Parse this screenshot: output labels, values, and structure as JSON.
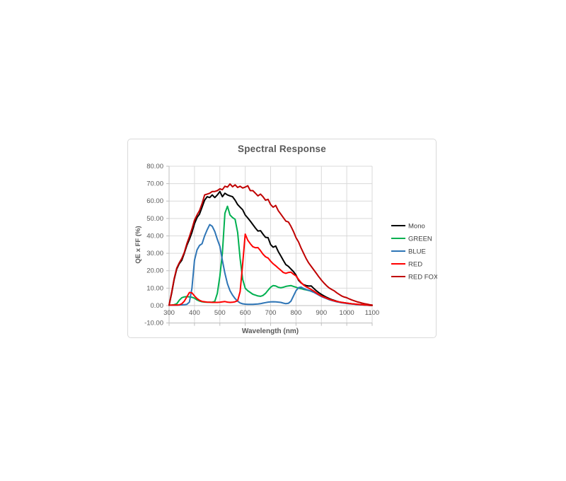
{
  "chart": {
    "frame_border_color": "#d9d9d9",
    "background_color": "#ffffff",
    "gridline_color": "#d9d9d9",
    "axis_line_color": "#bfbfbf",
    "title_color": "#595959",
    "tick_label_color": "#595959",
    "legend_label_color": "#404040"
  },
  "chart_data": {
    "type": "line",
    "title": "Spectral Response",
    "xlabel": "Wavelength (nm)",
    "ylabel": "QE x FF (%)",
    "xlim": [
      300,
      1100
    ],
    "ylim": [
      -10,
      80
    ],
    "grid": true,
    "legend_position": "right",
    "x_ticks": [
      300,
      400,
      500,
      600,
      700,
      800,
      900,
      1000,
      1100
    ],
    "x_tick_labels": [
      "300",
      "400",
      "500",
      "600",
      "700",
      "800",
      "900",
      "1000",
      "1100"
    ],
    "y_ticks": [
      80,
      70,
      60,
      50,
      40,
      30,
      20,
      10,
      0,
      -10
    ],
    "y_tick_labels": [
      "80.00",
      "70.00",
      "60.00",
      "50.00",
      "40.00",
      "30.00",
      "20.00",
      "10.00",
      "0.00",
      "-10.00"
    ],
    "x": [
      300,
      310,
      320,
      330,
      340,
      350,
      360,
      370,
      380,
      390,
      400,
      410,
      420,
      430,
      440,
      450,
      460,
      470,
      480,
      490,
      500,
      510,
      520,
      530,
      540,
      550,
      560,
      570,
      580,
      590,
      600,
      610,
      620,
      630,
      640,
      650,
      660,
      670,
      680,
      690,
      700,
      710,
      720,
      730,
      740,
      750,
      760,
      770,
      780,
      790,
      800,
      810,
      820,
      830,
      840,
      850,
      860,
      870,
      880,
      890,
      900,
      910,
      920,
      930,
      940,
      950,
      960,
      970,
      980,
      990,
      1000,
      1010,
      1020,
      1030,
      1040,
      1050,
      1060,
      1070,
      1080,
      1090,
      1100
    ],
    "series": [
      {
        "name": "Mono",
        "color": "#000000",
        "values": [
          0.2,
          7,
          15,
          21,
          24,
          26,
          30,
          34.5,
          38,
          42,
          47,
          50.5,
          52.5,
          56.5,
          60.5,
          62.5,
          62,
          63.5,
          62,
          63.5,
          65.5,
          62.5,
          64.5,
          63.5,
          63,
          62.5,
          60.5,
          58,
          56.5,
          55,
          52,
          50.3,
          48.5,
          46.5,
          44.5,
          42.8,
          43,
          41,
          39.2,
          39,
          35,
          33.5,
          34.2,
          31,
          28.5,
          26,
          23.5,
          22.5,
          21,
          19.5,
          17.5,
          14.5,
          13,
          12,
          11.5,
          11.2,
          11.3,
          9.8,
          8.5,
          7.4,
          6.4,
          5.6,
          4.8,
          4.1,
          3.5,
          3,
          2.5,
          2.1,
          1.8,
          1.6,
          1.4,
          1.2,
          1,
          0.85,
          0.7,
          0.6,
          0.45,
          0.35,
          0.25,
          0.15,
          0.1
        ]
      },
      {
        "name": "GREEN",
        "color": "#00b050",
        "values": [
          0.2,
          0.3,
          0.5,
          1,
          3,
          4.5,
          5,
          5.2,
          5,
          4.8,
          4.2,
          3.2,
          2.6,
          2.2,
          2,
          1.9,
          1.9,
          2,
          2.4,
          7,
          17,
          30,
          53,
          57,
          52,
          50.5,
          49.5,
          42,
          27,
          15,
          10,
          8.5,
          7.5,
          6.5,
          6,
          5.5,
          5.3,
          5.8,
          7,
          8.8,
          10.5,
          11.5,
          11.3,
          10.5,
          10.2,
          10.5,
          11,
          11.3,
          11.5,
          11,
          10.5,
          10,
          9.7,
          9.3,
          9,
          8.7,
          8.3,
          7.8,
          7,
          6.2,
          5.4,
          4.8,
          4.2,
          3.6,
          3.1,
          2.7,
          2.3,
          2,
          1.7,
          1.5,
          1.3,
          1.1,
          0.95,
          0.8,
          0.7,
          0.55,
          0.45,
          0.3,
          0.2,
          0.15,
          0.1
        ]
      },
      {
        "name": "BLUE",
        "color": "#2e75b6",
        "values": [
          0.2,
          0.2,
          0.2,
          0.2,
          0.3,
          0.4,
          0.5,
          0.7,
          2,
          10,
          26,
          32,
          34.5,
          35.5,
          40,
          43.5,
          46.5,
          45.5,
          42.5,
          38,
          34,
          26,
          18.5,
          12.5,
          8.5,
          6,
          4,
          2.5,
          1.5,
          1,
          0.8,
          0.7,
          0.7,
          0.7,
          0.8,
          0.9,
          1.1,
          1.4,
          1.7,
          2,
          2.1,
          2.2,
          2.1,
          2,
          1.8,
          1.4,
          1.1,
          1.3,
          2.5,
          5.5,
          8.5,
          10.3,
          10.6,
          9.8,
          9.2,
          8.8,
          8.2,
          7.6,
          6.8,
          6,
          5.2,
          4.6,
          4,
          3.4,
          3,
          2.6,
          2.2,
          1.9,
          1.6,
          1.4,
          1.2,
          1,
          0.9,
          0.75,
          0.6,
          0.5,
          0.4,
          0.3,
          0.2,
          0.12,
          0.1
        ]
      },
      {
        "name": "RED",
        "color": "#ff0000",
        "values": [
          0.2,
          0.3,
          0.3,
          0.3,
          0.4,
          1,
          2.5,
          5,
          7.5,
          7.3,
          5.5,
          4,
          3,
          2.4,
          2.2,
          2,
          1.9,
          1.8,
          1.8,
          1.8,
          1.9,
          2.1,
          2.3,
          2,
          1.8,
          1.9,
          2.2,
          2.8,
          8,
          24,
          41,
          37.5,
          35.5,
          33.8,
          33.2,
          33.3,
          31.5,
          29.5,
          28,
          27.3,
          25.5,
          24,
          22.8,
          21.5,
          20.3,
          19,
          18.5,
          19,
          19.2,
          18,
          17,
          15,
          13.2,
          11.8,
          10.8,
          10,
          9.2,
          8.3,
          7.3,
          6.3,
          5.5,
          4.9,
          4.3,
          3.7,
          3.2,
          2.8,
          2.4,
          2.1,
          1.8,
          1.6,
          1.4,
          1.2,
          1,
          0.9,
          0.75,
          0.6,
          0.5,
          0.4,
          0.3,
          0.2,
          0.1
        ]
      },
      {
        "name": "RED FOX",
        "color": "#c00000",
        "values": [
          0.2,
          7.5,
          15.5,
          21.5,
          24.5,
          27,
          30.5,
          35.5,
          39.5,
          44,
          49,
          52,
          54.5,
          58.5,
          63.5,
          64,
          64.5,
          65.5,
          65.5,
          66,
          67,
          66.5,
          68.5,
          68,
          69.8,
          68.2,
          69.3,
          67.8,
          68.5,
          67.5,
          68,
          68.8,
          66,
          66,
          64.5,
          63,
          64,
          62.5,
          60.5,
          61,
          58,
          56.5,
          57.5,
          54.5,
          52.5,
          50.5,
          48.5,
          48,
          45.5,
          42.5,
          39,
          36.5,
          33,
          30,
          27,
          24.5,
          22.5,
          20.5,
          18.5,
          16.5,
          14.6,
          13,
          11.5,
          10.2,
          9.3,
          8.5,
          7.4,
          6.4,
          5.5,
          4.9,
          4.5,
          3.8,
          3.2,
          2.7,
          2.2,
          1.8,
          1.4,
          1.1,
          0.8,
          0.5,
          0.3
        ]
      }
    ]
  }
}
